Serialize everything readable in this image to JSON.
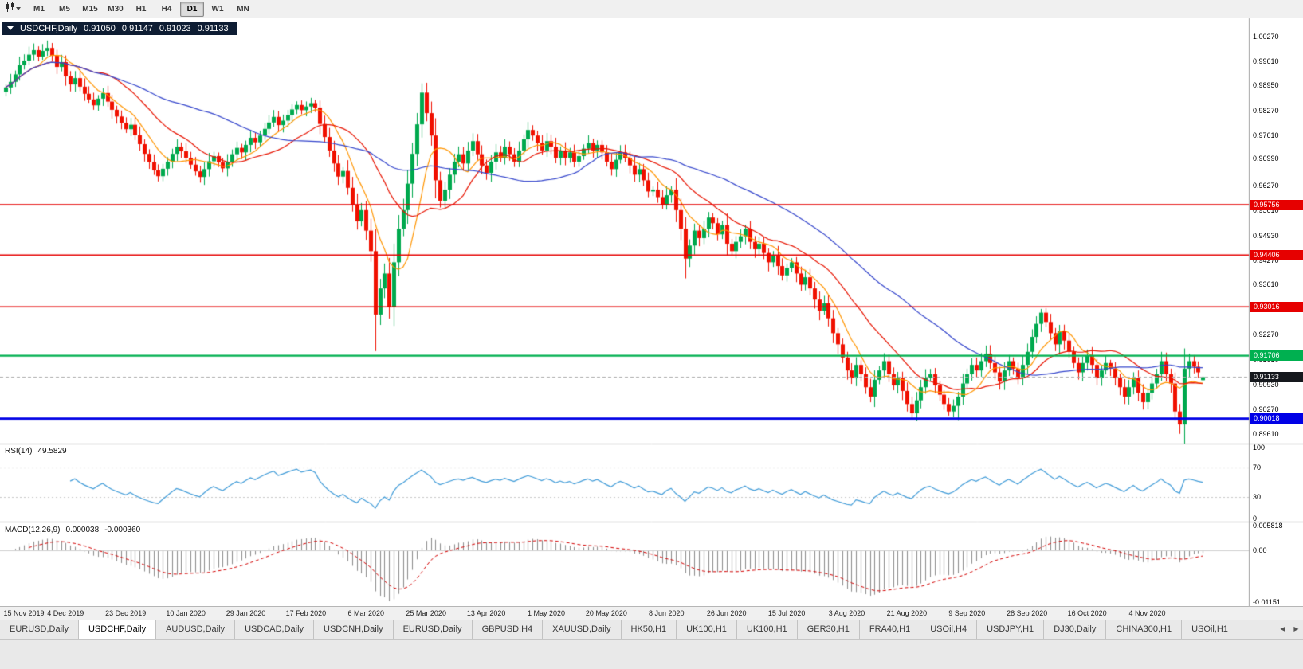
{
  "ui": {
    "toolbar": {
      "timeframes": [
        "M1",
        "M5",
        "M15",
        "M30",
        "H1",
        "H4",
        "D1",
        "W1",
        "MN"
      ],
      "active": "D1"
    },
    "title": {
      "symbol": "USDCHF,Daily",
      "open": "0.91050",
      "high": "0.91147",
      "low": "0.91023",
      "close": "0.91133"
    },
    "rsi_label": "RSI(14)",
    "rsi_value": "49.5829",
    "macd_label": "MACD(12,26,9)",
    "macd_value": "0.000038",
    "macd_signal": "-0.000360",
    "date_labels": [
      "15 Nov 2019",
      "4 Dec 2019",
      "23 Dec 2019",
      "10 Jan 2020",
      "29 Jan 2020",
      "17 Feb 2020",
      "6 Mar 2020",
      "25 Mar 2020",
      "13 Apr 2020",
      "1 May 2020",
      "20 May 2020",
      "8 Jun 2020",
      "26 Jun 2020",
      "15 Jul 2020",
      "3 Aug 2020",
      "21 Aug 2020",
      "9 Sep 2020",
      "28 Sep 2020",
      "16 Oct 2020",
      "4 Nov 2020"
    ],
    "tabs": {
      "items": [
        "EURUSD,Daily",
        "USDCHF,Daily",
        "AUDUSD,Daily",
        "USDCAD,Daily",
        "USDCNH,Daily",
        "EURUSD,Daily",
        "GBPUSD,H4",
        "XAUUSD,Daily",
        "HK50,H1",
        "UK100,H1",
        "UK100,H1",
        "GER30,H1",
        "FRA40,H1",
        "USOil,H4",
        "USDJPY,H1",
        "DJ30,Daily",
        "CHINA300,H1",
        "USOil,H1"
      ],
      "active_index": 1,
      "scroll_left": "◀",
      "scroll_right": "▶"
    }
  },
  "chart_data": {
    "type": "candlestick",
    "symbol": "USDCHF",
    "timeframe": "Daily",
    "title": "USDCHF,Daily",
    "last_candle": {
      "open": 0.9105,
      "high": 0.91147,
      "low": 0.91023,
      "close": 0.91133
    },
    "ylim": [
      0.8937,
      1.0069
    ],
    "y_tick_labels": [
      "1.00270",
      "0.99610",
      "0.98950",
      "0.98270",
      "0.97610",
      "0.96990",
      "0.96270",
      "0.95610",
      "0.94930",
      "0.94270",
      "0.93610",
      "0.92950",
      "0.92270",
      "0.91610",
      "0.90930",
      "0.90270",
      "0.89610"
    ],
    "x_labels": [
      "15 Nov 2019",
      "4 Dec 2019",
      "23 Dec 2019",
      "10 Jan 2020",
      "29 Jan 2020",
      "17 Feb 2020",
      "6 Mar 2020",
      "25 Mar 2020",
      "13 Apr 2020",
      "1 May 2020",
      "20 May 2020",
      "8 Jun 2020",
      "26 Jun 2020",
      "15 Jul 2020",
      "3 Aug 2020",
      "21 Aug 2020",
      "9 Sep 2020",
      "28 Sep 2020",
      "16 Oct 2020",
      "4 Nov 2020"
    ],
    "candles_per_label": 13,
    "closes": [
      0.989,
      0.9905,
      0.9925,
      0.995,
      0.9962,
      0.9978,
      0.999,
      0.9973,
      0.9988,
      0.9996,
      0.9975,
      0.9945,
      0.9958,
      0.992,
      0.9898,
      0.9915,
      0.9892,
      0.9873,
      0.9858,
      0.9842,
      0.986,
      0.9875,
      0.9852,
      0.983,
      0.9812,
      0.9795,
      0.9778,
      0.979,
      0.9762,
      0.9738,
      0.9712,
      0.969,
      0.9668,
      0.9652,
      0.9672,
      0.9691,
      0.9712,
      0.9731,
      0.9719,
      0.9701,
      0.9683,
      0.9665,
      0.965,
      0.9671,
      0.9692,
      0.9706,
      0.9689,
      0.9673,
      0.9691,
      0.9711,
      0.9728,
      0.9716,
      0.9736,
      0.9755,
      0.9743,
      0.9761,
      0.9779,
      0.9796,
      0.9811,
      0.9789,
      0.9801,
      0.9816,
      0.9831,
      0.9843,
      0.9829,
      0.9839,
      0.9848,
      0.9836,
      0.9792,
      0.9757,
      0.9721,
      0.9686,
      0.9651,
      0.9666,
      0.9621,
      0.9576,
      0.9531,
      0.9561,
      0.9506,
      0.9451,
      0.9281,
      0.9351,
      0.9391,
      0.9302,
      0.9421,
      0.9511,
      0.9561,
      0.9632,
      0.9712,
      0.9791,
      0.9876,
      0.9821,
      0.9761,
      0.9641,
      0.9586,
      0.9616,
      0.9656,
      0.9691,
      0.9711,
      0.9686,
      0.9721,
      0.9746,
      0.9711,
      0.9681,
      0.9661,
      0.9691,
      0.9716,
      0.9701,
      0.9731,
      0.9711,
      0.9691,
      0.9721,
      0.9751,
      0.9776,
      0.9761,
      0.9741,
      0.9721,
      0.9746,
      0.9731,
      0.9701,
      0.9721,
      0.9701,
      0.9716,
      0.9691,
      0.9706,
      0.9726,
      0.9741,
      0.9721,
      0.9736,
      0.9716,
      0.9691,
      0.9671,
      0.9696,
      0.9716,
      0.9701,
      0.9681,
      0.9656,
      0.9671,
      0.9641,
      0.9611,
      0.9616,
      0.9596,
      0.9576,
      0.9601,
      0.9616,
      0.9561,
      0.9511,
      0.9431,
      0.9466,
      0.9506,
      0.9486,
      0.9511,
      0.9541,
      0.9526,
      0.9496,
      0.9521,
      0.9471,
      0.9451,
      0.9476,
      0.9491,
      0.9511,
      0.9476,
      0.9456,
      0.9471,
      0.9446,
      0.9421,
      0.9441,
      0.9411,
      0.9386,
      0.9406,
      0.9421,
      0.9391,
      0.9361,
      0.9381,
      0.9351,
      0.9321,
      0.9291,
      0.9311,
      0.9271,
      0.9231,
      0.9201,
      0.9166,
      0.9131,
      0.9111,
      0.9146,
      0.9121,
      0.9086,
      0.9061,
      0.9106,
      0.9131,
      0.9156,
      0.9121,
      0.9091,
      0.9111,
      0.9076,
      0.9041,
      0.9016,
      0.9051,
      0.9086,
      0.9111,
      0.9121,
      0.9091,
      0.9066,
      0.9041,
      0.9021,
      0.9036,
      0.9061,
      0.9096,
      0.9121,
      0.9146,
      0.9131,
      0.9156,
      0.9176,
      0.9151,
      0.9126,
      0.9101,
      0.9131,
      0.9156,
      0.9136,
      0.9111,
      0.9146,
      0.9181,
      0.9221,
      0.9256,
      0.9286,
      0.9261,
      0.9231,
      0.9201,
      0.9236,
      0.9211,
      0.9181,
      0.9151,
      0.9126,
      0.9151,
      0.9171,
      0.9146,
      0.9111,
      0.9131,
      0.9151,
      0.9136,
      0.9111,
      0.9086,
      0.9061,
      0.9086,
      0.9111,
      0.9071,
      0.9046,
      0.9071,
      0.9096,
      0.9121,
      0.9156,
      0.9121,
      0.9096,
      0.9021,
      0.8986,
      0.9136,
      0.9156,
      0.9141,
      0.9126,
      0.91133
    ],
    "wick_overrides": {
      "6": {
        "high": 1.0008
      },
      "9": {
        "high": 1.0016
      },
      "33": {
        "low": 0.9638
      },
      "80": {
        "low": 0.9183
      },
      "90": {
        "high": 0.9901
      },
      "94": {
        "low": 0.9568
      },
      "147": {
        "low": 0.9378
      },
      "183": {
        "low": 0.9095
      },
      "196": {
        "low": 0.8999
      },
      "206": {
        "low": 0.8998
      },
      "224": {
        "high": 0.9296
      },
      "242": {
        "low": 0.9041
      },
      "253": {
        "low": 0.8998
      },
      "254": {
        "low": 0.8961
      },
      "255": {
        "high": 0.919
      }
    },
    "hlines": [
      {
        "value": 0.95756,
        "label": "0.95756",
        "color": "#e60000",
        "width": 1.6
      },
      {
        "value": 0.94406,
        "label": "0.94406",
        "color": "#e60000",
        "width": 1.6
      },
      {
        "value": 0.93016,
        "label": "0.93016",
        "color": "#e60000",
        "width": 1.6
      },
      {
        "value": 0.91706,
        "label": "0.91706",
        "color": "#00b050",
        "width": 2.2
      },
      {
        "value": 0.90018,
        "label": "0.90018",
        "color": "#0000e6",
        "width": 2.6
      }
    ],
    "current_price": {
      "value": 0.91133,
      "label": "0.91133",
      "color": "#15181d"
    },
    "moving_averages": [
      {
        "period": 8,
        "color": "#ff9500"
      },
      {
        "period": 20,
        "color": "#e81300"
      },
      {
        "period": 45,
        "color": "#3445cc"
      }
    ],
    "up_color": "#00a94e",
    "down_color": "#f01000",
    "rsi": {
      "period": 14,
      "current": 49.5829,
      "levels": [
        70,
        30
      ],
      "axis_labels": [
        "100",
        "70",
        "30",
        "0"
      ],
      "color": "#3f9bd8"
    },
    "macd": {
      "fast": 12,
      "slow": 26,
      "signal": 9,
      "macd_current": 3.8e-05,
      "signal_current": -0.00036,
      "scale_max": 0.005818,
      "scale_min": -0.01151,
      "axis_labels": [
        "0.005818",
        "0.00",
        "-0.01151"
      ],
      "hist_color": "#8c8c8c",
      "signal_color": "#d40000"
    }
  }
}
